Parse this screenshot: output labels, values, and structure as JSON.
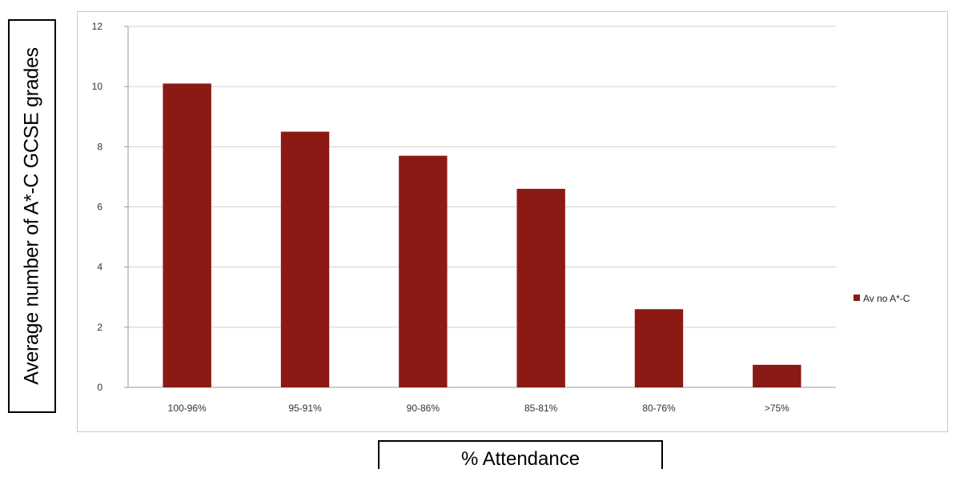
{
  "chart_data": {
    "type": "bar",
    "categories": [
      "100-96%",
      "95-91%",
      "90-86%",
      "85-81%",
      "80-76%",
      ">75%"
    ],
    "series": [
      {
        "name": "Av no A*-C",
        "values": [
          10.1,
          8.5,
          7.7,
          6.6,
          2.6,
          0.75
        ],
        "color": "#8b1a14"
      }
    ],
    "xlabel": "% Attendance",
    "ylabel": "Average number of A*-C GCSE grades",
    "ylim": [
      0,
      12
    ],
    "yticks": [
      0,
      2,
      4,
      6,
      8,
      10,
      12
    ],
    "grid": true,
    "legend_position": "right"
  }
}
